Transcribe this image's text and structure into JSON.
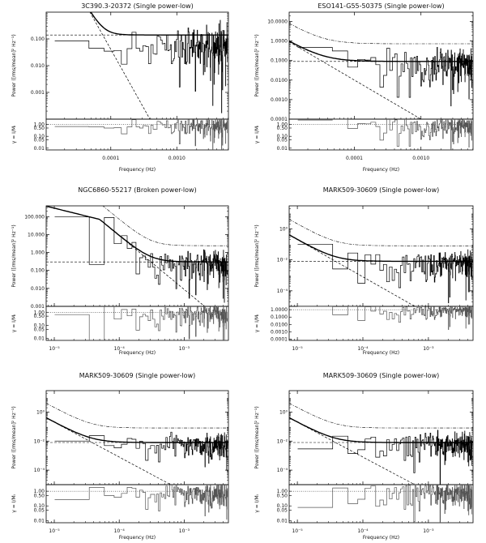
{
  "figure": {
    "background": "#ffffff",
    "ink": "#000000",
    "ratio_ink": "#555555"
  },
  "chart_data": [
    {
      "type": "line",
      "title": "3C390.3-20372 (Single power-low)",
      "xlabel": "Frequency (Hz)",
      "ylabel": "Power ([rms/mean]² Hz⁻¹)",
      "ratio_ylabel": "γ = I/Mᵢ",
      "x_log": true,
      "y_log": true,
      "xlim": [
        1.05e-05,
        0.00605
      ],
      "ylim": [
        0.0001,
        1.0
      ],
      "x_tick_values": [
        0.0001,
        0.001
      ],
      "x_tick_labels": [
        "0.0001",
        "0.0010"
      ],
      "y_tick_values": [
        0.001,
        0.01,
        0.1
      ],
      "y_tick_labels": [
        "0.001",
        "0.010",
        "0.100"
      ],
      "ratio_tick_values": [
        0.01,
        0.05,
        0.1,
        0.5,
        1.0
      ],
      "ratio_tick_labels": [
        "0.01",
        "0.05",
        "0.10",
        "0.50",
        "1.00"
      ],
      "model": {
        "kind": "powerlaw",
        "norm": 1.02e-19,
        "index": -4.4,
        "noise": 0.14
      },
      "noise_level": 0.14,
      "envelope": {
        "factor": 6.0,
        "show": false
      },
      "data_level": {
        "top": 0.24,
        "bottom": 0.07
      },
      "scatter": 1.0,
      "n_points": 180,
      "seed": 11
    },
    {
      "type": "line",
      "title": "ESO141-G55-50375 (Single power-low)",
      "xlabel": "Frequency (Hz)",
      "ylabel": "Power ([rms/mean]² Hz⁻¹)",
      "ratio_ylabel": "γ = I/Mᵢ",
      "x_log": true,
      "y_log": true,
      "xlim": [
        1.05e-05,
        0.00605
      ],
      "ylim": [
        0.0001,
        30.0
      ],
      "x_tick_values": [
        0.0001,
        0.001
      ],
      "x_tick_labels": [
        "0.0001",
        "0.0010"
      ],
      "y_tick_values": [
        0.0001,
        0.001,
        0.01,
        0.1,
        1.0,
        10.0
      ],
      "y_tick_labels": [
        "0.0001",
        "0.0010",
        "0.0100",
        "0.1000",
        "1.0000",
        "10.0000"
      ],
      "ratio_tick_values": [
        0.01,
        0.05,
        0.1,
        0.5,
        1.0
      ],
      "ratio_tick_labels": [
        "0.01",
        "0.05",
        "0.10",
        "0.50",
        "1.00"
      ],
      "model": {
        "kind": "powerlaw",
        "norm": 1e-10,
        "index": -2.0,
        "noise": 0.09
      },
      "noise_level": 0.09,
      "envelope": {
        "factor": 8.0,
        "show": true
      },
      "data_level": null,
      "scatter": 1.0,
      "n_points": 180,
      "seed": 23
    },
    {
      "type": "line",
      "title": "NGC6860-55217 (Broken power-low)",
      "xlabel": "Frequency (Hz)",
      "ylabel": "Power ([rms/mean]² Hz⁻¹)",
      "ratio_ylabel": "γ = I/Mᵢ",
      "x_log": true,
      "y_log": true,
      "xlim": [
        7.5e-06,
        0.0048
      ],
      "ylim": [
        0.001,
        400.0
      ],
      "x_tick_values": [
        1e-05,
        0.0001,
        0.001
      ],
      "x_tick_labels": [
        "10⁻⁵",
        "10⁻⁴",
        "10⁻³"
      ],
      "y_tick_values": [
        0.001,
        0.01,
        0.1,
        1.0,
        10.0,
        100.0
      ],
      "y_tick_labels": [
        "0.001",
        "0.010",
        "0.100",
        "1.000",
        "10.000",
        "100.000"
      ],
      "ratio_tick_values": [
        0.01,
        0.05,
        0.1,
        0.5,
        1.0
      ],
      "ratio_tick_labels": [
        "0.01",
        "0.05",
        "0.10",
        "0.50",
        "1.00"
      ],
      "model": {
        "kind": "broken",
        "amp": 70.0,
        "fb": 5e-05,
        "index_low": -0.9,
        "index_high": -3.0,
        "noise": 0.3
      },
      "noise_level": 0.3,
      "envelope": {
        "factor": 8.0,
        "show": true
      },
      "data_level": null,
      "scatter": 1.0,
      "n_points": 190,
      "seed": 37
    },
    {
      "type": "line",
      "title": "MARK509-30609 (Single power-low)",
      "xlabel": "Frequency (Hz)",
      "ylabel": "Power ([rms/mean]² Hz⁻¹)",
      "ratio_ylabel": "γ = I/Mᵢ",
      "x_log": true,
      "y_log": true,
      "xlim": [
        7.5e-06,
        0.0048
      ],
      "ylim": [
        1e-05,
        30.0
      ],
      "x_tick_values": [
        1e-05,
        0.0001,
        0.001
      ],
      "x_tick_labels": [
        "10⁻⁵",
        "10⁻⁴",
        "10⁻³"
      ],
      "y_tick_values": [
        0.0001,
        0.01,
        1.0
      ],
      "y_tick_labels": [
        "10⁻⁴",
        "10⁻²",
        "10⁰"
      ],
      "ratio_tick_values": [
        0.0001,
        0.001,
        0.01,
        0.1,
        1.0
      ],
      "ratio_tick_labels": [
        "0.0001",
        "0.0010",
        "0.0100",
        "0.1000",
        "1.0000"
      ],
      "model": {
        "kind": "powerlaw",
        "norm": 2e-13,
        "index": -2.4,
        "noise": 0.008
      },
      "noise_level": 0.008,
      "envelope": {
        "factor": 10.0,
        "show": true
      },
      "data_level": null,
      "scatter": 1.0,
      "n_points": 190,
      "seed": 53
    },
    {
      "type": "line",
      "title": "MARK509-30609 (Single power-low)",
      "xlabel": "Frequency (Hz)",
      "ylabel": "Power ([rms/mean]² Hz⁻¹)",
      "ratio_ylabel": "γ = I/Mᵢ",
      "x_log": true,
      "y_log": true,
      "xlim": [
        7.5e-06,
        0.0048
      ],
      "ylim": [
        1e-05,
        30.0
      ],
      "x_tick_values": [
        1e-05,
        0.0001,
        0.001
      ],
      "x_tick_labels": [
        "10⁻⁵",
        "10⁻⁴",
        "10⁻³"
      ],
      "y_tick_values": [
        0.0001,
        0.01,
        1.0
      ],
      "y_tick_labels": [
        "10⁻⁴",
        "10⁻²",
        "10⁰"
      ],
      "ratio_tick_values": [
        0.01,
        0.05,
        0.1,
        0.5,
        1.0
      ],
      "ratio_tick_labels": [
        "0.01",
        "0.05",
        "0.10",
        "0.50",
        "1.00"
      ],
      "model": {
        "kind": "powerlaw",
        "norm": 2e-13,
        "index": -2.4,
        "noise": 0.008
      },
      "noise_level": 0.008,
      "envelope": {
        "factor": 10.0,
        "show": true
      },
      "data_level": null,
      "scatter": 1.0,
      "n_points": 190,
      "seed": 71
    },
    {
      "type": "line",
      "title": "MARK509-30609 (Single power-low)",
      "xlabel": "Frequency (Hz)",
      "ylabel": "Power ([rms/mean]² Hz⁻¹)",
      "ratio_ylabel": "γ = I/Mᵢ",
      "x_log": true,
      "y_log": true,
      "xlim": [
        7.5e-06,
        0.0048
      ],
      "ylim": [
        1e-05,
        30.0
      ],
      "x_tick_values": [
        1e-05,
        0.0001,
        0.001
      ],
      "x_tick_labels": [
        "10⁻⁵",
        "10⁻⁴",
        "10⁻³"
      ],
      "y_tick_values": [
        0.0001,
        0.01,
        1.0
      ],
      "y_tick_labels": [
        "10⁻⁴",
        "10⁻²",
        "10⁰"
      ],
      "ratio_tick_values": [
        0.01,
        0.05,
        0.1,
        0.5,
        1.0
      ],
      "ratio_tick_labels": [
        "0.01",
        "0.05",
        "0.10",
        "0.50",
        "1.00"
      ],
      "model": {
        "kind": "powerlaw",
        "norm": 2e-13,
        "index": -2.4,
        "noise": 0.008
      },
      "noise_level": 0.008,
      "envelope": {
        "factor": 10.0,
        "show": true
      },
      "data_level": null,
      "scatter": 1.0,
      "n_points": 190,
      "seed": 89
    }
  ]
}
